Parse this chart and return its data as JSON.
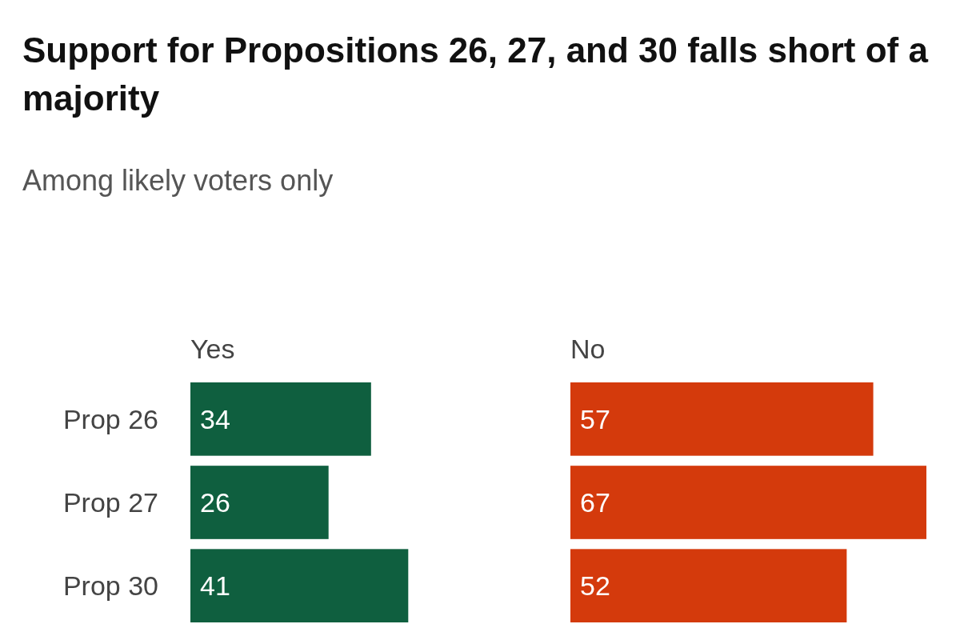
{
  "chart_data": [
    {
      "type": "bar",
      "orientation": "horizontal",
      "title": "Support for Propositions 26, 27, and 30 falls short of a majority",
      "subtitle": "Among likely voters only",
      "categories": [
        "Prop 26",
        "Prop 27",
        "Prop 30"
      ],
      "tick_labels": "y",
      "series": [
        {
          "name": "Yes",
          "color": "#0f5f3f",
          "values": [
            34,
            26,
            41
          ]
        }
      ],
      "data_labels": true
    },
    {
      "type": "bar",
      "orientation": "horizontal",
      "categories": [
        null,
        null,
        null
      ],
      "tick_labels": false,
      "series": [
        {
          "name": "No",
          "color": "#d43a0c",
          "values": [
            57,
            67,
            52
          ]
        }
      ],
      "data_labels": true
    }
  ]
}
